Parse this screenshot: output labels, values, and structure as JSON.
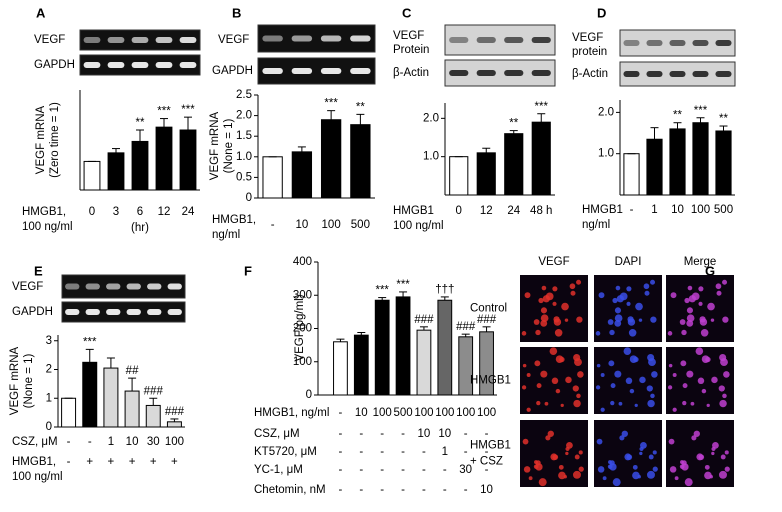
{
  "chart_data": [
    {
      "type": "bar",
      "panel": "A",
      "gel_labels": [
        "VEGF",
        "GAPDH"
      ],
      "ylabel": [
        "VEGF mRNA",
        "(Zero time = 1)"
      ],
      "xlabel": [
        "HMGB1,",
        "100 ng/ml"
      ],
      "xunit": "(hr)",
      "categories": [
        "0",
        "3",
        "6",
        "12",
        "24"
      ],
      "values": [
        1,
        1.3,
        1.7,
        2.2,
        2.1
      ],
      "errors": [
        0,
        0.15,
        0.4,
        0.3,
        0.45
      ],
      "annotations": [
        null,
        null,
        "**",
        "***",
        "***"
      ],
      "colors": [
        "#ffffff",
        "#000000",
        "#000000",
        "#000000",
        "#000000"
      ],
      "ylim": [
        0,
        3.5
      ]
    },
    {
      "type": "bar",
      "panel": "B",
      "gel_labels": [
        "VEGF",
        "GAPDH"
      ],
      "ylabel": [
        "VEGF mRNA",
        "(None = 1)"
      ],
      "xlabel": [
        "HMGB1,",
        "ng/ml"
      ],
      "categories": [
        "-",
        "10",
        "100",
        "500"
      ],
      "values": [
        1,
        1.12,
        1.9,
        1.78
      ],
      "errors": [
        0,
        0.12,
        0.22,
        0.25
      ],
      "annotations": [
        null,
        null,
        "***",
        "**"
      ],
      "colors": [
        "#ffffff",
        "#000000",
        "#000000",
        "#000000"
      ],
      "ylim": [
        0,
        2.5
      ],
      "yticks": [
        0,
        0.5,
        {
          "value": 1,
          "label": "1.0"
        },
        {
          "value": 1.5,
          "label": "1.5"
        },
        {
          "value": 2,
          "label": "2.0"
        },
        {
          "value": 2.5,
          "label": "2.5"
        }
      ]
    },
    {
      "type": "bar",
      "panel": "C",
      "gel_labels": [
        "VEGF",
        "Protein",
        "β-Actin"
      ],
      "xlabel": [
        "HMGB1",
        "100 ng/ml"
      ],
      "categories": [
        "0",
        "12",
        "24",
        "48 h"
      ],
      "values": [
        1,
        1.1,
        1.6,
        1.9
      ],
      "errors": [
        0,
        0.12,
        0.08,
        0.22
      ],
      "annotations": [
        null,
        null,
        "**",
        "***"
      ],
      "colors": [
        "#ffffff",
        "#000000",
        "#000000",
        "#000000"
      ],
      "ylim": [
        0,
        2.4
      ],
      "yticks": [
        {
          "value": 1,
          "label": "1.0"
        },
        {
          "value": 2,
          "label": "2.0"
        }
      ]
    },
    {
      "type": "bar",
      "panel": "D",
      "gel_labels": [
        "VEGF",
        "protein",
        "β-Actin"
      ],
      "xlabel": [
        "HMGB1",
        "ng/ml"
      ],
      "categories": [
        "-",
        "1",
        "10",
        "100",
        "500"
      ],
      "values": [
        1,
        1.35,
        1.6,
        1.75,
        1.55
      ],
      "errors": [
        0,
        0.28,
        0.15,
        0.12,
        0.12
      ],
      "annotations": [
        null,
        null,
        "**",
        "***",
        "**"
      ],
      "colors": [
        "#ffffff",
        "#000000",
        "#000000",
        "#000000",
        "#000000"
      ],
      "ylim": [
        0,
        2.3
      ],
      "yticks": [
        {
          "value": 1,
          "label": "1.0"
        },
        {
          "value": 2,
          "label": "2.0"
        }
      ]
    },
    {
      "type": "bar",
      "panel": "E",
      "gel_labels": [
        "VEGF",
        "GAPDH"
      ],
      "ylabel": [
        "VEGF  mRNA",
        "(None = 1)"
      ],
      "values": [
        1,
        2.25,
        2.05,
        1.25,
        0.75,
        0.18
      ],
      "errors": [
        0,
        0.45,
        0.35,
        0.45,
        0.25,
        0.1
      ],
      "annotations": [
        null,
        "***",
        null,
        "##",
        "###",
        "###"
      ],
      "colors": [
        "#ffffff",
        "#000000",
        "#d9d9d9",
        "#d9d9d9",
        "#d9d9d9",
        "#d9d9d9"
      ],
      "ylim": [
        0,
        3.2
      ],
      "yticks": [
        0,
        1,
        2,
        3
      ],
      "rows": [
        {
          "label": [
            "CSZ, μM"
          ],
          "values": [
            "-",
            "-",
            "1",
            "10",
            "30",
            "100"
          ]
        },
        {
          "label": [
            "HMGB1,",
            "100 ng/ml"
          ],
          "values": [
            "-",
            "+",
            "+",
            "+",
            "+",
            "+"
          ]
        }
      ]
    },
    {
      "type": "bar",
      "panel": "F",
      "ylabel": [
        "VEGF(pg/ml)"
      ],
      "values": [
        160,
        180,
        285,
        295,
        195,
        285,
        175,
        190
      ],
      "errors": [
        8,
        8,
        8,
        15,
        10,
        10,
        8,
        15
      ],
      "annotations": [
        null,
        null,
        "***",
        "***",
        "###",
        "†††",
        "###",
        "###"
      ],
      "colors": [
        "#ffffff",
        "#000000",
        "#000000",
        "#000000",
        "#d9d9d9",
        "#666666",
        "#8c8c8c",
        "#8c8c8c"
      ],
      "ylim": [
        0,
        400
      ],
      "yticks": [
        0,
        100,
        200,
        300,
        400
      ],
      "rows": [
        {
          "label": [
            "HMGB1, ng/ml"
          ],
          "values": [
            "-",
            "10",
            "100",
            "500",
            "100",
            "100",
            "100",
            "100"
          ]
        },
        {
          "label": [
            "CSZ, μM"
          ],
          "values": [
            "-",
            "-",
            "-",
            "-",
            "10",
            "10",
            "-",
            "-"
          ]
        },
        {
          "label": [
            "KT5720, μM"
          ],
          "values": [
            "-",
            "-",
            "-",
            "-",
            "-",
            "1",
            "-",
            "-"
          ]
        },
        {
          "label": [
            "YC-1, μM"
          ],
          "values": [
            "-",
            "-",
            "-",
            "-",
            "-",
            "-",
            "30",
            "-"
          ]
        },
        {
          "label": [
            "Chetomin, nM"
          ],
          "values": [
            "-",
            "-",
            "-",
            "-",
            "-",
            "-",
            "-",
            "10"
          ]
        }
      ]
    }
  ],
  "panel_g": {
    "panel": "G",
    "columns": [
      "VEGF",
      "DAPI",
      "Merge"
    ],
    "rows": [
      [
        "Control"
      ],
      [
        "HMGB1"
      ],
      [
        "HMGB1",
        "+ CSZ"
      ]
    ]
  }
}
